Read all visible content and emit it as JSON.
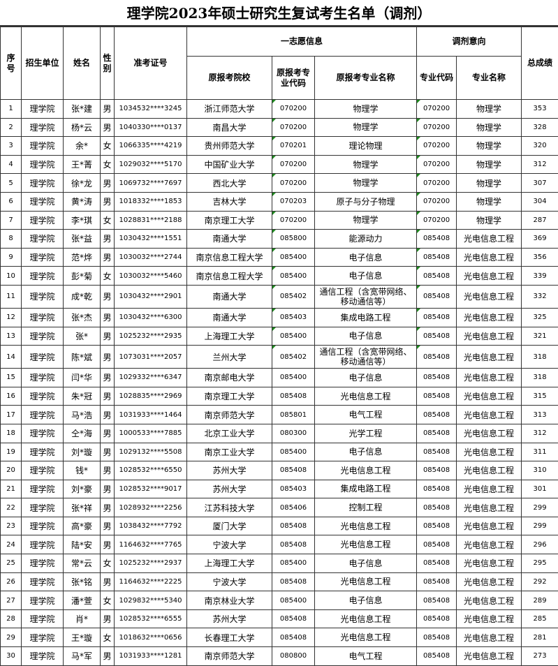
{
  "title": "理学院2023年硕士研究生复试考生名单（调剂）",
  "headers": {
    "seq": "序号",
    "unit": "招生单位",
    "name": "姓名",
    "sex": "性别",
    "exam_id": "准考证号",
    "first_choice": "一志愿信息",
    "orig_school": "原报考院校",
    "orig_code": "原报考专业代码",
    "orig_major": "原报考专业名称",
    "adjust": "调剂意向",
    "adj_code": "专业代码",
    "adj_major": "专业名称",
    "total": "总成绩"
  },
  "rows": [
    [
      "1",
      "理学院",
      "张*建",
      "男",
      "1034532****3245",
      "浙江师范大学",
      "070200",
      "物理学",
      "070200",
      "物理学",
      "353"
    ],
    [
      "2",
      "理学院",
      "杨*云",
      "男",
      "1040330****0137",
      "南昌大学",
      "070200",
      "物理学",
      "070200",
      "物理学",
      "328"
    ],
    [
      "3",
      "理学院",
      "余*",
      "女",
      "1066335****4219",
      "贵州师范大学",
      "070201",
      "理论物理",
      "070200",
      "物理学",
      "320"
    ],
    [
      "4",
      "理学院",
      "王*菁",
      "女",
      "1029032****5170",
      "中国矿业大学",
      "070200",
      "物理学",
      "070200",
      "物理学",
      "312"
    ],
    [
      "5",
      "理学院",
      "徐*龙",
      "男",
      "1069732****7697",
      "西北大学",
      "070200",
      "物理学",
      "070200",
      "物理学",
      "307"
    ],
    [
      "6",
      "理学院",
      "黄*涛",
      "男",
      "1018332****1853",
      "吉林大学",
      "070203",
      "原子与分子物理",
      "070200",
      "物理学",
      "304"
    ],
    [
      "7",
      "理学院",
      "李*琪",
      "女",
      "1028831****2188",
      "南京理工大学",
      "070200",
      "物理学",
      "070200",
      "物理学",
      "287"
    ],
    [
      "8",
      "理学院",
      "张*益",
      "男",
      "1030432****1551",
      "南通大学",
      "085800",
      "能源动力",
      "085408",
      "光电信息工程",
      "369"
    ],
    [
      "9",
      "理学院",
      "范*烨",
      "男",
      "1030032****2744",
      "南京信息工程大学",
      "085400",
      "电子信息",
      "085408",
      "光电信息工程",
      "356"
    ],
    [
      "10",
      "理学院",
      "彭*菊",
      "女",
      "1030032****5460",
      "南京信息工程大学",
      "085400",
      "电子信息",
      "085408",
      "光电信息工程",
      "339"
    ],
    [
      "11",
      "理学院",
      "成*乾",
      "男",
      "1030432****2901",
      "南通大学",
      "085402",
      "通信工程（含宽带网络、移动通信等）",
      "085408",
      "光电信息工程",
      "332"
    ],
    [
      "12",
      "理学院",
      "张*杰",
      "男",
      "1030432****6300",
      "南通大学",
      "085403",
      "集成电路工程",
      "085408",
      "光电信息工程",
      "325"
    ],
    [
      "13",
      "理学院",
      "张*",
      "男",
      "1025232****2935",
      "上海理工大学",
      "085400",
      "电子信息",
      "085408",
      "光电信息工程",
      "321"
    ],
    [
      "14",
      "理学院",
      "陈*斌",
      "男",
      "1073031****2057",
      "兰州大学",
      "085402",
      "通信工程（含宽带网络、移动通信等）",
      "085408",
      "光电信息工程",
      "318"
    ],
    [
      "15",
      "理学院",
      "闫*华",
      "男",
      "1029332****6347",
      "南京邮电大学",
      "085400",
      "电子信息",
      "085408",
      "光电信息工程",
      "318"
    ],
    [
      "16",
      "理学院",
      "朱*冠",
      "男",
      "1028835****2969",
      "南京理工大学",
      "085408",
      "光电信息工程",
      "085408",
      "光电信息工程",
      "315"
    ],
    [
      "17",
      "理学院",
      "马*浩",
      "男",
      "1031933****1464",
      "南京师范大学",
      "085801",
      "电气工程",
      "085408",
      "光电信息工程",
      "313"
    ],
    [
      "18",
      "理学院",
      "仝*海",
      "男",
      "1000533****7885",
      "北京工业大学",
      "080300",
      "光学工程",
      "085408",
      "光电信息工程",
      "312"
    ],
    [
      "19",
      "理学院",
      "刘*璇",
      "男",
      "1029132****5508",
      "南京工业大学",
      "085400",
      "电子信息",
      "085408",
      "光电信息工程",
      "311"
    ],
    [
      "20",
      "理学院",
      "钱*",
      "男",
      "1028532****6550",
      "苏州大学",
      "085408",
      "光电信息工程",
      "085408",
      "光电信息工程",
      "310"
    ],
    [
      "21",
      "理学院",
      "刘*豪",
      "男",
      "1028532****9017",
      "苏州大学",
      "085403",
      "集成电路工程",
      "085408",
      "光电信息工程",
      "301"
    ],
    [
      "22",
      "理学院",
      "张*祥",
      "男",
      "1028932****2256",
      "江苏科技大学",
      "085406",
      "控制工程",
      "085408",
      "光电信息工程",
      "299"
    ],
    [
      "23",
      "理学院",
      "高*豪",
      "男",
      "1038432****7792",
      "厦门大学",
      "085408",
      "光电信息工程",
      "085408",
      "光电信息工程",
      "299"
    ],
    [
      "24",
      "理学院",
      "陆*安",
      "男",
      "1164632****7765",
      "宁波大学",
      "085408",
      "光电信息工程",
      "085408",
      "光电信息工程",
      "296"
    ],
    [
      "25",
      "理学院",
      "常*云",
      "女",
      "1025232****2937",
      "上海理工大学",
      "085400",
      "电子信息",
      "085408",
      "光电信息工程",
      "295"
    ],
    [
      "26",
      "理学院",
      "张*铭",
      "男",
      "1164632****2225",
      "宁波大学",
      "085408",
      "光电信息工程",
      "085408",
      "光电信息工程",
      "292"
    ],
    [
      "27",
      "理学院",
      "潘*萱",
      "女",
      "1029832****5340",
      "南京林业大学",
      "085400",
      "电子信息",
      "085408",
      "光电信息工程",
      "289"
    ],
    [
      "28",
      "理学院",
      "肖*",
      "男",
      "1028532****6555",
      "苏州大学",
      "085408",
      "光电信息工程",
      "085408",
      "光电信息工程",
      "285"
    ],
    [
      "29",
      "理学院",
      "王*璇",
      "女",
      "1018632****0656",
      "长春理工大学",
      "085408",
      "光电信息工程",
      "085408",
      "光电信息工程",
      "281"
    ],
    [
      "30",
      "理学院",
      "马*军",
      "男",
      "1031933****1281",
      "南京师范大学",
      "080800",
      "电气工程",
      "085408",
      "光电信息工程",
      "273"
    ]
  ],
  "colors": {
    "border": "#333333",
    "cell_marker": "#1f8a1f"
  }
}
